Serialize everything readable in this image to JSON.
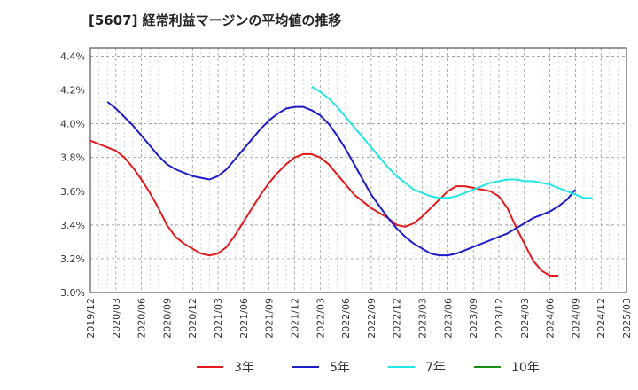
{
  "chart_data": {
    "type": "line",
    "title": "[5607]  経常利益マージンの平均値の推移",
    "xlabel": "",
    "ylabel": "",
    "ylim": [
      3.0,
      4.45
    ],
    "y_ticks": [
      "3.0%",
      "3.2%",
      "3.4%",
      "3.6%",
      "3.8%",
      "4.0%",
      "4.2%",
      "4.4%"
    ],
    "y_tick_values": [
      3.0,
      3.2,
      3.4,
      3.6,
      3.8,
      4.0,
      4.2,
      4.4
    ],
    "x_ticks": [
      "2019/12",
      "2020/03",
      "2020/06",
      "2020/09",
      "2020/12",
      "2021/03",
      "2021/06",
      "2021/09",
      "2021/12",
      "2022/03",
      "2022/06",
      "2022/09",
      "2022/12",
      "2023/03",
      "2023/06",
      "2023/09",
      "2023/12",
      "2024/03",
      "2024/06",
      "2024/09",
      "2024/12",
      "2025/03"
    ],
    "grid": true,
    "legend_position": "bottom",
    "series": [
      {
        "name": "3年",
        "color": "#e31a1c",
        "start": "2019/12",
        "values": [
          3.9,
          3.88,
          3.86,
          3.84,
          3.8,
          3.74,
          3.67,
          3.59,
          3.5,
          3.4,
          3.33,
          3.29,
          3.26,
          3.23,
          3.22,
          3.23,
          3.27,
          3.34,
          3.42,
          3.5,
          3.58,
          3.65,
          3.71,
          3.76,
          3.8,
          3.82,
          3.82,
          3.8,
          3.76,
          3.7,
          3.64,
          3.58,
          3.54,
          3.5,
          3.47,
          3.44,
          3.4,
          3.39,
          3.41,
          3.45,
          3.5,
          3.55,
          3.6,
          3.63,
          3.63,
          3.62,
          3.61,
          3.6,
          3.57,
          3.5,
          3.39,
          3.29,
          3.19,
          3.13,
          3.1,
          3.1
        ]
      },
      {
        "name": "5年",
        "color": "#1c1cc8",
        "start": "2020/02",
        "values": [
          4.13,
          4.09,
          4.04,
          3.99,
          3.93,
          3.87,
          3.81,
          3.76,
          3.73,
          3.71,
          3.69,
          3.68,
          3.67,
          3.69,
          3.73,
          3.79,
          3.85,
          3.91,
          3.97,
          4.02,
          4.06,
          4.09,
          4.1,
          4.1,
          4.08,
          4.05,
          4.0,
          3.93,
          3.85,
          3.76,
          3.67,
          3.58,
          3.51,
          3.44,
          3.38,
          3.33,
          3.29,
          3.26,
          3.23,
          3.22,
          3.22,
          3.23,
          3.25,
          3.27,
          3.29,
          3.31,
          3.33,
          3.35,
          3.38,
          3.41,
          3.44,
          3.46,
          3.48,
          3.51,
          3.55,
          3.61
        ]
      },
      {
        "name": "7年",
        "color": "#22e6e6",
        "start": "2022/02",
        "values": [
          4.22,
          4.19,
          4.15,
          4.1,
          4.04,
          3.98,
          3.92,
          3.86,
          3.8,
          3.74,
          3.69,
          3.65,
          3.61,
          3.59,
          3.57,
          3.56,
          3.56,
          3.57,
          3.59,
          3.61,
          3.63,
          3.65,
          3.66,
          3.67,
          3.67,
          3.66,
          3.66,
          3.65,
          3.64,
          3.62,
          3.6,
          3.58,
          3.56,
          3.56
        ]
      },
      {
        "name": "10年",
        "color": "#1a8c1a",
        "start": "2019/12",
        "values": []
      }
    ]
  }
}
